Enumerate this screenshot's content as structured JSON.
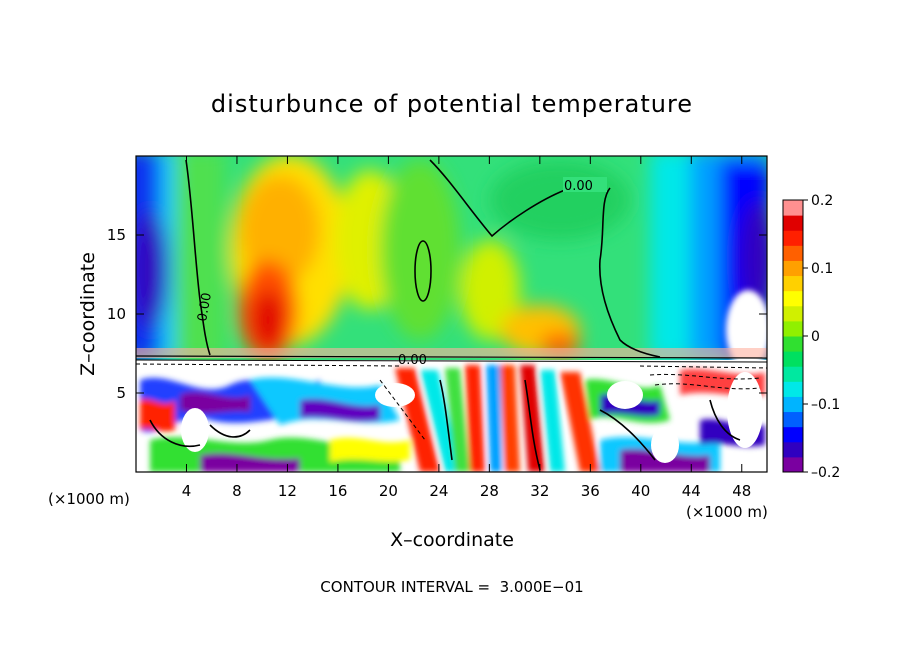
{
  "chart_data": {
    "type": "heatmap",
    "title": "disturbunce of potential temperature",
    "xlabel": "X–coordinate",
    "ylabel": "Z–coordinate",
    "x_unit_left": "(×1000 m)",
    "x_unit_right": "(×1000 m)",
    "xlim": [
      0,
      50
    ],
    "ylim": [
      0,
      20
    ],
    "xticks": [
      4,
      8,
      12,
      16,
      20,
      24,
      28,
      32,
      36,
      40,
      44,
      48
    ],
    "xtick_labels": [
      "4",
      "8",
      "12",
      "16",
      "20",
      "24",
      "28",
      "32",
      "36",
      "40",
      "44",
      "48"
    ],
    "yticks": [
      5,
      10,
      15
    ],
    "ytick_labels": [
      "5",
      "10",
      "15"
    ],
    "colorbar": {
      "range": [
        -0.2,
        0.2
      ],
      "ticks": [
        0.2,
        0.1,
        0,
        -0.1,
        -0.2
      ],
      "tick_labels": [
        "0.2",
        "0.1",
        "0",
        "–0.1",
        "–0.2"
      ],
      "colors": [
        "#7a00a0",
        "#3000c0",
        "#0000ff",
        "#0060ff",
        "#00b4ff",
        "#00e8e8",
        "#00e8a0",
        "#00e060",
        "#30e030",
        "#90f000",
        "#d0f000",
        "#ffff00",
        "#ffd000",
        "#ffa000",
        "#ff6000",
        "#ff2000",
        "#e00000",
        "#ff9090"
      ]
    },
    "contour_labels": [
      "0.00",
      "0.00",
      "0.00"
    ],
    "contour_interval_text": "CONTOUR INTERVAL =  3.000E−01"
  }
}
